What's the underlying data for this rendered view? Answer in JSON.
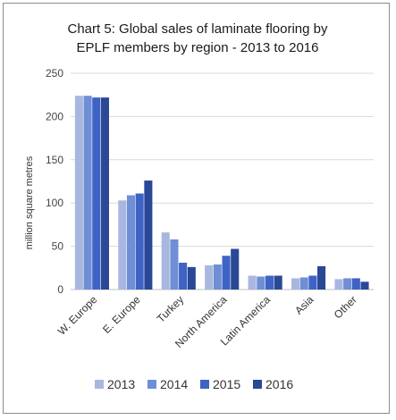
{
  "chart_data": {
    "type": "bar",
    "title_lines": [
      "Chart 5: Global sales of laminate flooring by",
      "EPLF members by region - 2013 to 2016"
    ],
    "xlabel": "",
    "ylabel": "million square metres",
    "ylim": [
      0,
      250
    ],
    "yticks": [
      0,
      50,
      100,
      150,
      200,
      250
    ],
    "grid": true,
    "legend": "bottom",
    "categories": [
      "W. Europe",
      "E. Europe",
      "Turkey",
      "North America",
      "Latin America",
      "Asia",
      "Other"
    ],
    "series": [
      {
        "name": "2013",
        "color": "#a9b7e0",
        "values": [
          224,
          103,
          66,
          28,
          16,
          13,
          12
        ]
      },
      {
        "name": "2014",
        "color": "#6e8fd6",
        "values": [
          224,
          109,
          58,
          29,
          15,
          14,
          13
        ]
      },
      {
        "name": "2015",
        "color": "#3f63c4",
        "values": [
          222,
          111,
          31,
          39,
          16,
          16,
          13
        ]
      },
      {
        "name": "2016",
        "color": "#2a4896",
        "values": [
          222,
          126,
          26,
          47,
          16,
          27,
          9
        ]
      }
    ]
  }
}
